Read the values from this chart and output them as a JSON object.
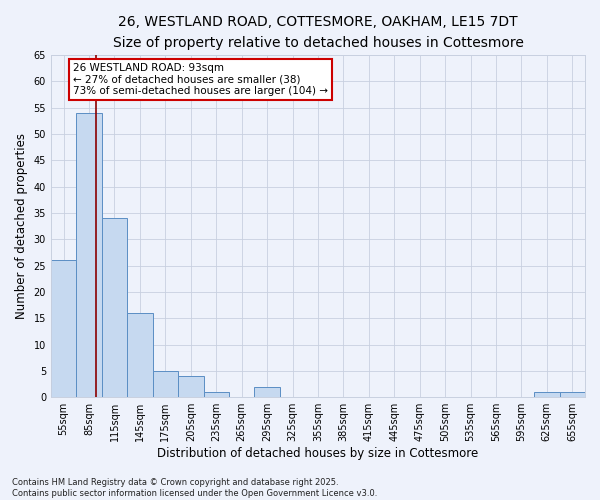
{
  "title_line1": "26, WESTLAND ROAD, COTTESMORE, OAKHAM, LE15 7DT",
  "title_line2": "Size of property relative to detached houses in Cottesmore",
  "xlabel": "Distribution of detached houses by size in Cottesmore",
  "ylabel": "Number of detached properties",
  "bins": [
    "55sqm",
    "85sqm",
    "115sqm",
    "145sqm",
    "175sqm",
    "205sqm",
    "235sqm",
    "265sqm",
    "295sqm",
    "325sqm",
    "355sqm",
    "385sqm",
    "415sqm",
    "445sqm",
    "475sqm",
    "505sqm",
    "535sqm",
    "565sqm",
    "595sqm",
    "625sqm",
    "655sqm"
  ],
  "bar_values": [
    26,
    54,
    34,
    16,
    5,
    4,
    1,
    0,
    2,
    0,
    0,
    0,
    0,
    0,
    0,
    0,
    0,
    0,
    0,
    1,
    1
  ],
  "bar_color": "#c6d9f0",
  "bar_edge_color": "#5b8ec4",
  "ylim": [
    0,
    65
  ],
  "yticks": [
    0,
    5,
    10,
    15,
    20,
    25,
    30,
    35,
    40,
    45,
    50,
    55,
    60,
    65
  ],
  "vline_x": 93,
  "vline_color": "#8b0000",
  "annotation_text": "26 WESTLAND ROAD: 93sqm\n← 27% of detached houses are smaller (38)\n73% of semi-detached houses are larger (104) →",
  "annotation_box_color": "#ffffff",
  "annotation_border_color": "#cc0000",
  "footnote": "Contains HM Land Registry data © Crown copyright and database right 2025.\nContains public sector information licensed under the Open Government Licence v3.0.",
  "bg_color": "#eef2fb",
  "plot_bg_color": "#eef2fb",
  "grid_color": "#c8d0e0",
  "title_fontsize": 10,
  "subtitle_fontsize": 9,
  "tick_fontsize": 7,
  "label_fontsize": 8.5,
  "footnote_fontsize": 6,
  "annotation_fontsize": 7.5
}
